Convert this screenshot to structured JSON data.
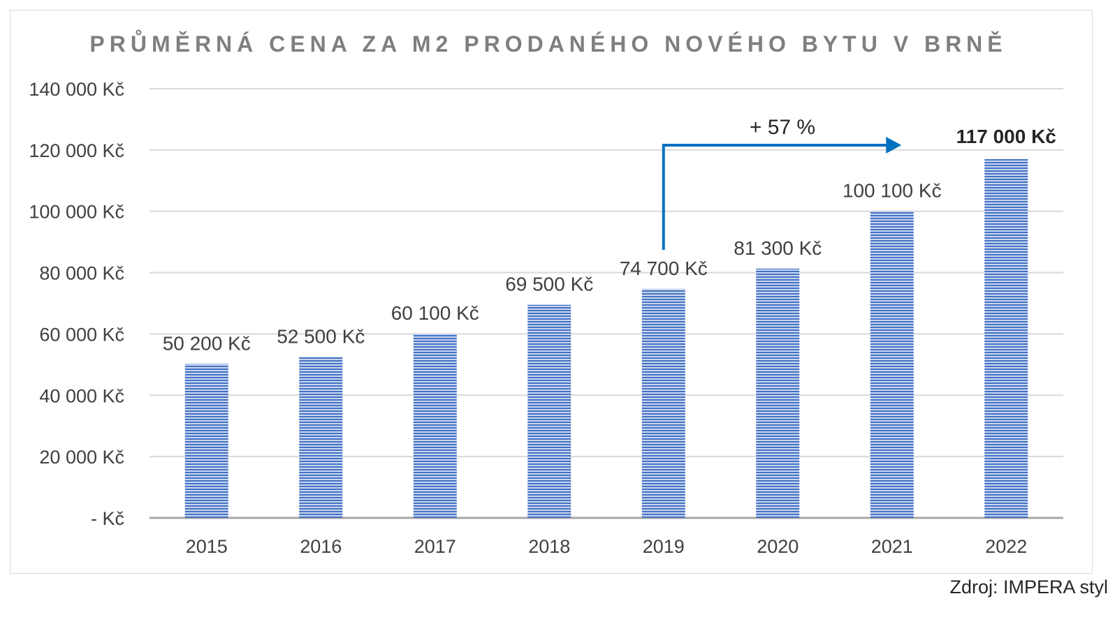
{
  "chart_data": {
    "type": "bar",
    "title": "PRŮMĚRNÁ CENA ZA M2 PRODANÉHO NOVÉHO BYTU V BRNĚ",
    "categories": [
      "2015",
      "2016",
      "2017",
      "2018",
      "2019",
      "2020",
      "2021",
      "2022"
    ],
    "values": [
      50200,
      52500,
      60100,
      69500,
      74700,
      81300,
      100100,
      117000
    ],
    "data_labels": [
      "50 200 Kč",
      "52 500 Kč",
      "60 100 Kč",
      "69 500 Kč",
      "74 700 Kč",
      "81 300 Kč",
      "100 100 Kč",
      "117 000 Kč"
    ],
    "y_ticks": [
      0,
      20000,
      40000,
      60000,
      80000,
      100000,
      120000,
      140000
    ],
    "y_tick_labels": [
      "-   Kč",
      "20 000 Kč",
      "40 000 Kč",
      "60 000 Kč",
      "80 000 Kč",
      "100 000 Kč",
      "120 000 Kč",
      "140 000 Kč"
    ],
    "ylim": [
      0,
      140000
    ],
    "grid": true,
    "legend": "none",
    "bar_color": "#4472c4",
    "annotation": {
      "text": "+ 57 %",
      "from_category": "2019",
      "to_category": "2022",
      "color": "#0070c0"
    }
  },
  "source": "Zdroj: IMPERA styl"
}
